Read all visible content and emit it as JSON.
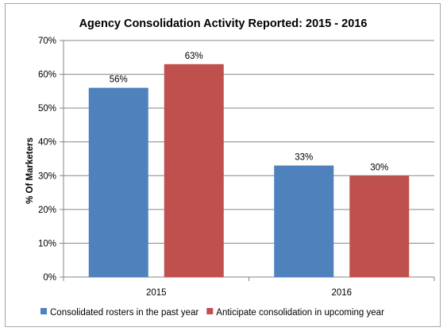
{
  "chart_data": {
    "type": "bar",
    "title": "Agency Consolidation Activity Reported: 2015 - 2016",
    "xlabel": "",
    "ylabel": "% Of Marketers",
    "categories": [
      "2015",
      "2016"
    ],
    "series": [
      {
        "name": "Consolidated rosters  in the past year",
        "values": [
          56,
          33
        ],
        "value_labels": [
          "56%",
          "33%"
        ],
        "color": "#4f81bd"
      },
      {
        "name": "Anticipate consolidation in upcoming year",
        "values": [
          63,
          30
        ],
        "value_labels": [
          "63%",
          "30%"
        ],
        "color": "#c0504d"
      }
    ],
    "ylim": [
      0,
      70
    ],
    "yticks": [
      0,
      10,
      20,
      30,
      40,
      50,
      60,
      70
    ],
    "ytick_labels": [
      "0%",
      "10%",
      "20%",
      "30%",
      "40%",
      "50%",
      "60%",
      "70%"
    ],
    "grid": true,
    "legend_position": "bottom-left"
  }
}
